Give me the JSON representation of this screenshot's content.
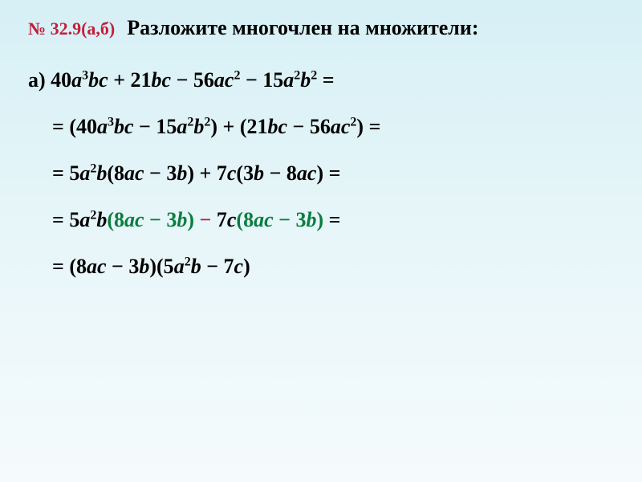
{
  "header": {
    "problem_number": "№ 32.9(а,б)",
    "title": "Разложите многочлен на множители:"
  },
  "lines": {
    "line1_label": "а)",
    "line1": "40a³bc + 21bc − 56ac² − 15a²b² =",
    "line2_prefix": "= (40a³bc − 15a²b²) + (21bc − 56ac²) =",
    "line3": "= 5a²b(8ac − 3b) + 7c(3b − 8ac) =",
    "line4_part1": "= 5a²b",
    "line4_paren1": "(8ac − 3b)",
    "line4_minus": " − ",
    "line4_part2": "7c",
    "line4_paren2": "(8ac − 3b)",
    "line4_eq": " =",
    "line5": "= (8ac − 3b)(5a²b − 7c)"
  },
  "colors": {
    "red": "#c41e3a",
    "green": "#0a7d3e",
    "text": "#000000",
    "bg_top": "#d6f0f5",
    "bg_bottom": "#f5fbfc"
  },
  "typography": {
    "title_fontsize": 26,
    "equation_fontsize": 26,
    "number_fontsize": 22,
    "sup_fontsize": 16,
    "font_family": "Georgia, Times New Roman, serif",
    "weight": "bold"
  }
}
